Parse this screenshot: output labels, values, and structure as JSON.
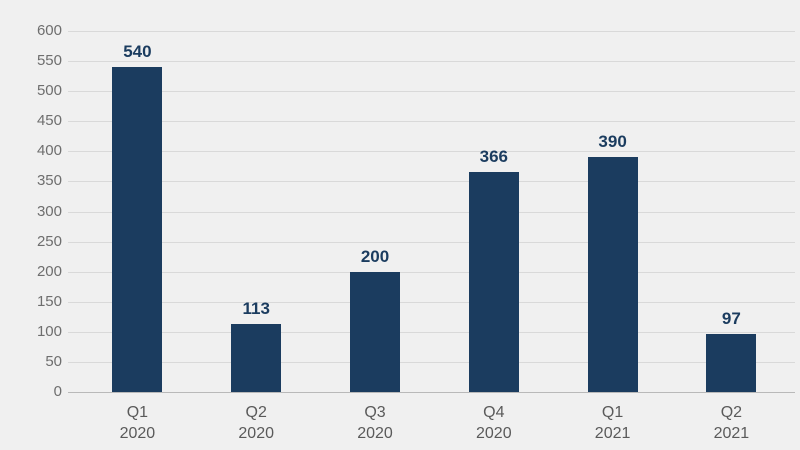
{
  "chart_data": {
    "type": "bar",
    "title": "",
    "categories": [
      {
        "quarter": "Q1",
        "year": "2020"
      },
      {
        "quarter": "Q2",
        "year": "2020"
      },
      {
        "quarter": "Q3",
        "year": "2020"
      },
      {
        "quarter": "Q4",
        "year": "2020"
      },
      {
        "quarter": "Q1",
        "year": "2021"
      },
      {
        "quarter": "Q2",
        "year": "2021"
      }
    ],
    "values": [
      540,
      113,
      200,
      366,
      390,
      97
    ],
    "value_labels": [
      "540",
      "113",
      "200",
      "366",
      "390",
      "97"
    ],
    "y_ticks": [
      0,
      50,
      100,
      150,
      200,
      250,
      300,
      350,
      400,
      450,
      500,
      550,
      600
    ],
    "ylim": [
      0,
      600
    ],
    "xlabel": "",
    "ylabel": "",
    "grid": true,
    "legend": "none",
    "colors": {
      "background": "#f0f0f0",
      "bar": "#1b3c5f",
      "value_label": "#1b3c5f",
      "gridline": "#d9d9d9",
      "axis_line": "#b9b9b9",
      "y_tick_text": "#6e6e6e",
      "x_tick_text": "#5a5a5a"
    }
  }
}
